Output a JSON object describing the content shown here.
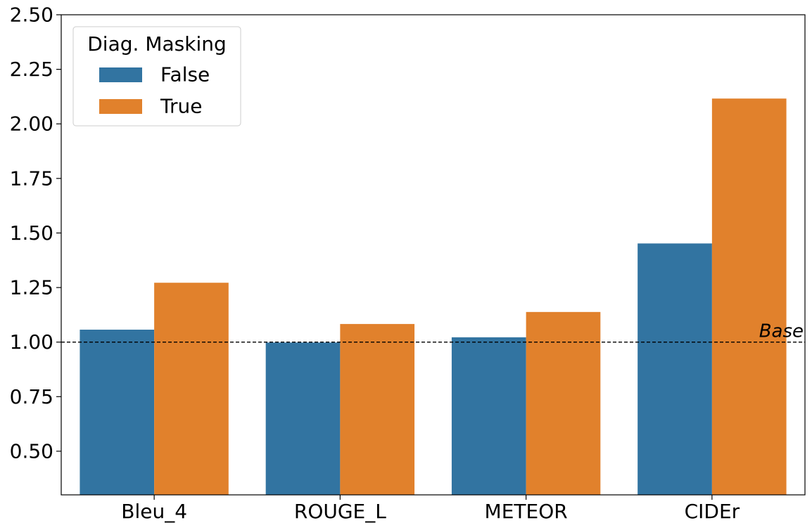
{
  "chart_data": {
    "type": "bar",
    "categories": [
      "Bleu_4",
      "ROUGE_L",
      "METEOR",
      "CIDEr"
    ],
    "series": [
      {
        "name": "False",
        "color": "#3274a1",
        "values": [
          1.057,
          0.998,
          1.022,
          1.452
        ]
      },
      {
        "name": "True",
        "color": "#e1812c",
        "values": [
          1.272,
          1.083,
          1.138,
          2.116
        ]
      }
    ],
    "ylim": [
      0.3,
      2.5
    ],
    "yticks": [
      "0.50",
      "0.75",
      "1.00",
      "1.25",
      "1.50",
      "1.75",
      "2.00",
      "2.25",
      "2.50"
    ],
    "title": "",
    "xlabel": "",
    "ylabel": "",
    "legend": {
      "title": "Diag. Masking",
      "placement": "top-left"
    },
    "reference_line": {
      "value": 1.0,
      "label": "Base",
      "style": "dashed",
      "color": "#000000"
    },
    "grid": false
  }
}
